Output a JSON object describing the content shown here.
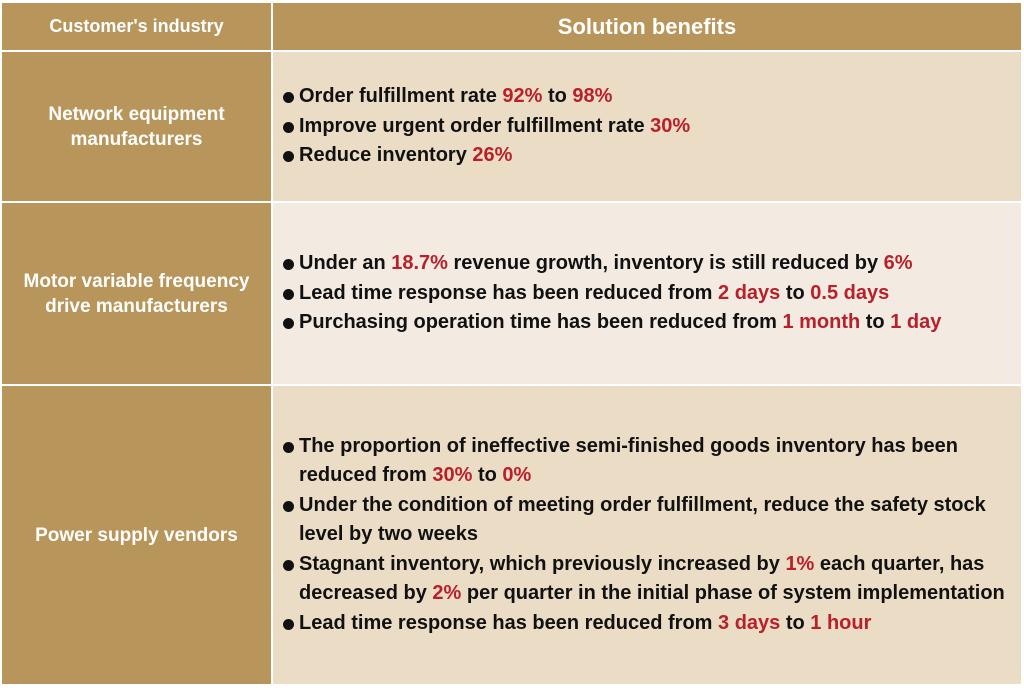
{
  "headers": {
    "industry": "Customer's industry",
    "benefits": "Solution benefits"
  },
  "colors": {
    "header_bg": "#b8955a",
    "row_bg_a": "#ebdcc5",
    "row_bg_b": "#f3ebe1",
    "highlight": "#b8202a"
  },
  "rows": [
    {
      "industry_lines": [
        "Network equipment",
        "manufacturers"
      ],
      "benefits": [
        [
          "Order fulfillment rate ",
          "92%",
          " to ",
          "98%"
        ],
        [
          "Improve urgent order fulfillment rate ",
          "30%"
        ],
        [
          "Reduce inventory ",
          "26%"
        ]
      ]
    },
    {
      "industry_lines": [
        "Motor variable frequency",
        "drive manufacturers"
      ],
      "benefits": [
        [
          "Under an ",
          "18.7%",
          " revenue growth, inventory is still reduced by ",
          "6%"
        ],
        [
          "Lead time response has been reduced from ",
          "2 days",
          " to ",
          "0.5 days"
        ],
        [
          "Purchasing operation time has been reduced from ",
          "1 month",
          " to ",
          "1 day"
        ]
      ]
    },
    {
      "industry_lines": [
        "Power supply vendors"
      ],
      "benefits": [
        [
          "The proportion of ineffective semi-finished goods inventory has been reduced from ",
          "30%",
          " to ",
          "0%"
        ],
        [
          "Under the condition of meeting order fulfillment, reduce the safety stock level by two weeks"
        ],
        [
          "Stagnant inventory, which previously increased by ",
          "1%",
          " each quarter, has decreased by ",
          "2%",
          " per quarter in the initial phase of system implementation"
        ],
        [
          "Lead time response has been reduced from ",
          "3 days",
          " to ",
          "1 hour"
        ]
      ]
    }
  ]
}
